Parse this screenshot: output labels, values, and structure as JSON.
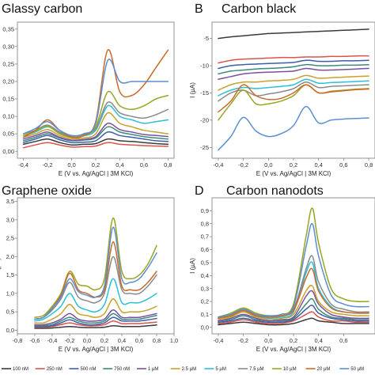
{
  "legend": [
    {
      "label": "100 nM",
      "color": "#3a3a3a"
    },
    {
      "label": "250 nM",
      "color": "#d9544d"
    },
    {
      "label": "500 nM",
      "color": "#3d5ea8"
    },
    {
      "label": "750 nM",
      "color": "#3b8a7a"
    },
    {
      "label": "1 µM",
      "color": "#7b4fa0"
    },
    {
      "label": "2.5 µM",
      "color": "#c9a12b"
    },
    {
      "label": "5 µM",
      "color": "#2bbfd9"
    },
    {
      "label": "7.5 µM",
      "color": "#8a8a8a"
    },
    {
      "label": "10 µM",
      "color": "#9aa51e"
    },
    {
      "label": "20 µM",
      "color": "#c86a2a"
    },
    {
      "label": "50 µM",
      "color": "#5b8fd0"
    }
  ],
  "chart_data": [
    {
      "id": "A",
      "letter": "",
      "title": "Glassy carbon",
      "type": "line",
      "xlabel": "E (V vs. Ag/AgCl | 3M KCl)",
      "ylabel": "",
      "xlim": [
        -0.45,
        0.85
      ],
      "ylim": [
        -0.02,
        0.37
      ],
      "xticks": [
        -0.4,
        -0.2,
        0.0,
        0.2,
        0.4,
        0.6,
        0.8
      ],
      "xtick_labels": [
        "-0,4",
        "-0,2",
        "0,0",
        "0,2",
        "0,4",
        "0,6",
        "0,8"
      ],
      "yticks": [
        0.0,
        0.05,
        0.1,
        0.15,
        0.2,
        0.25,
        0.3,
        0.35
      ],
      "ytick_labels": [
        "0,00",
        "0,05",
        "0,10",
        "0,15",
        "0,20",
        "0,25",
        "0,30",
        "0,35"
      ],
      "x": [
        -0.4,
        -0.3,
        -0.2,
        -0.1,
        0.0,
        0.1,
        0.2,
        0.3,
        0.4,
        0.5,
        0.6,
        0.7,
        0.8
      ],
      "series": [
        {
          "color": "#3a3a3a",
          "values": [
            0.02,
            0.028,
            0.035,
            0.025,
            0.018,
            0.02,
            0.022,
            0.035,
            0.03,
            0.028,
            0.025,
            0.022,
            0.02
          ]
        },
        {
          "color": "#d9544d",
          "values": [
            0.01,
            0.018,
            0.025,
            0.018,
            0.012,
            0.013,
            0.015,
            0.025,
            0.02,
            0.018,
            0.016,
            0.015,
            0.014
          ]
        },
        {
          "color": "#3d5ea8",
          "values": [
            0.025,
            0.035,
            0.045,
            0.033,
            0.025,
            0.026,
            0.03,
            0.055,
            0.045,
            0.04,
            0.035,
            0.03,
            0.028
          ]
        },
        {
          "color": "#3b8a7a",
          "values": [
            0.03,
            0.04,
            0.05,
            0.038,
            0.03,
            0.032,
            0.038,
            0.07,
            0.055,
            0.048,
            0.042,
            0.038,
            0.035
          ]
        },
        {
          "color": "#7b4fa0",
          "values": [
            0.035,
            0.045,
            0.055,
            0.04,
            0.032,
            0.034,
            0.042,
            0.08,
            0.062,
            0.055,
            0.048,
            0.045,
            0.042
          ]
        },
        {
          "color": "#c9a12b",
          "values": [
            0.04,
            0.05,
            0.062,
            0.045,
            0.036,
            0.038,
            0.05,
            0.11,
            0.08,
            0.07,
            0.06,
            0.055,
            0.05
          ]
        },
        {
          "color": "#2bbfd9",
          "values": [
            0.045,
            0.055,
            0.07,
            0.052,
            0.04,
            0.044,
            0.06,
            0.13,
            0.1,
            0.09,
            0.08,
            0.085,
            0.09
          ]
        },
        {
          "color": "#8a8a8a",
          "values": [
            0.05,
            0.06,
            0.075,
            0.055,
            0.043,
            0.048,
            0.065,
            0.14,
            0.11,
            0.1,
            0.095,
            0.105,
            0.12
          ]
        },
        {
          "color": "#9aa51e",
          "values": [
            0.045,
            0.058,
            0.072,
            0.05,
            0.04,
            0.045,
            0.07,
            0.17,
            0.13,
            0.12,
            0.13,
            0.15,
            0.16
          ]
        },
        {
          "color": "#c86a2a",
          "values": [
            0.04,
            0.06,
            0.09,
            0.06,
            0.04,
            0.045,
            0.085,
            0.29,
            0.17,
            0.16,
            0.19,
            0.24,
            0.29
          ]
        },
        {
          "color": "#5b8fd0",
          "values": [
            0.05,
            0.065,
            0.085,
            0.06,
            0.045,
            0.05,
            0.08,
            0.26,
            0.2,
            0.2,
            0.2,
            0.2,
            0.2
          ]
        }
      ]
    },
    {
      "id": "B",
      "letter": "B",
      "title": "Carbon black",
      "type": "line",
      "xlabel": "E (V vs. Ag/AgCl | 3M KCl)",
      "ylabel": "I (µA)",
      "xlim": [
        -0.45,
        0.85
      ],
      "ylim": [
        -27,
        -2
      ],
      "xticks": [
        -0.4,
        -0.2,
        0.0,
        0.2,
        0.4,
        0.6,
        0.8
      ],
      "xtick_labels": [
        "-0,4",
        "-0,2",
        "0,0",
        "0,2",
        "0,4",
        "0,6",
        "0,8"
      ],
      "yticks": [
        -25,
        -20,
        -15,
        -10,
        -5
      ],
      "ytick_labels": [
        "-25",
        "-20",
        "-15",
        "-10",
        "-5"
      ],
      "x": [
        -0.4,
        -0.3,
        -0.2,
        -0.1,
        0.0,
        0.1,
        0.2,
        0.3,
        0.4,
        0.5,
        0.6,
        0.7,
        0.8
      ],
      "series": [
        {
          "color": "#3a3a3a",
          "values": [
            -5.0,
            -4.7,
            -4.5,
            -4.3,
            -4.1,
            -4.0,
            -3.9,
            -3.8,
            -3.7,
            -3.6,
            -3.5,
            -3.4,
            -3.3
          ]
        },
        {
          "color": "#d9544d",
          "values": [
            -9.5,
            -9.0,
            -8.8,
            -8.7,
            -8.6,
            -8.5,
            -8.5,
            -8.4,
            -8.4,
            -8.3,
            -8.3,
            -8.2,
            -8.2
          ]
        },
        {
          "color": "#3d5ea8",
          "values": [
            -10.5,
            -10.0,
            -9.8,
            -9.7,
            -9.6,
            -9.5,
            -9.4,
            -9.0,
            -9.2,
            -9.2,
            -9.1,
            -9.1,
            -9.0
          ]
        },
        {
          "color": "#3b8a7a",
          "values": [
            -11.5,
            -11.0,
            -10.8,
            -10.6,
            -10.5,
            -10.4,
            -10.2,
            -9.8,
            -10.0,
            -10.0,
            -9.9,
            -9.9,
            -9.8
          ]
        },
        {
          "color": "#7b4fa0",
          "values": [
            -12.5,
            -12.0,
            -11.5,
            -11.3,
            -11.2,
            -11.1,
            -11.0,
            -10.5,
            -10.8,
            -10.8,
            -10.7,
            -10.6,
            -10.5
          ]
        },
        {
          "color": "#c9a12b",
          "values": [
            -14.5,
            -13.5,
            -13.0,
            -13.0,
            -12.8,
            -12.7,
            -12.5,
            -11.8,
            -12.3,
            -12.2,
            -12.1,
            -12.0,
            -11.9
          ]
        },
        {
          "color": "#2bbfd9",
          "values": [
            -15.5,
            -14.5,
            -14.0,
            -14.2,
            -14.0,
            -13.8,
            -13.5,
            -12.5,
            -13.2,
            -13.1,
            -13.0,
            -12.9,
            -12.8
          ]
        },
        {
          "color": "#8a8a8a",
          "values": [
            -16.5,
            -15.0,
            -14.5,
            -15.5,
            -15.2,
            -14.8,
            -14.2,
            -13.0,
            -14.0,
            -13.8,
            -13.7,
            -13.6,
            -13.5
          ]
        },
        {
          "color": "#9aa51e",
          "values": [
            -20.0,
            -17.0,
            -14.5,
            -17.0,
            -17.0,
            -16.5,
            -15.5,
            -13.5,
            -15.0,
            -14.7,
            -14.5,
            -14.3,
            -14.2
          ]
        },
        {
          "color": "#c86a2a",
          "values": [
            -18.5,
            -16.5,
            -13.5,
            -15.5,
            -16.2,
            -16.0,
            -15.0,
            -13.5,
            -15.0,
            -14.8,
            -14.6,
            -14.4,
            -14.3
          ]
        },
        {
          "color": "#5b8fd0",
          "values": [
            -25.5,
            -23.0,
            -19.5,
            -22.0,
            -23.0,
            -22.5,
            -21.0,
            -17.5,
            -20.5,
            -20.0,
            -19.8,
            -19.7,
            -19.6
          ]
        }
      ]
    },
    {
      "id": "C",
      "letter": "",
      "title": "Graphene oxide",
      "type": "line",
      "xlabel": "E (V vs. Ag/AgCl | 3M KCl)",
      "ylabel": "I (µA)",
      "xlim": [
        -0.8,
        1.0
      ],
      "ylim": [
        -0.1,
        3.6
      ],
      "xticks": [
        -0.8,
        -0.6,
        -0.4,
        -0.2,
        0.0,
        0.2,
        0.4,
        0.6,
        0.8,
        1.0
      ],
      "xtick_labels": [
        "-0,8",
        "-0,6",
        "-0,4",
        "-0,2",
        "0,0",
        "0,2",
        "0,4",
        "0,6",
        "0,8",
        "1,0"
      ],
      "yticks": [
        0.0,
        0.5,
        1.0,
        1.5,
        2.0,
        2.5,
        3.0,
        3.5
      ],
      "ytick_labels": [
        "0,0",
        "0,5",
        "1,0",
        "1,5",
        "2,0",
        "2,5",
        "3,0",
        "3,5"
      ],
      "x": [
        -0.6,
        -0.5,
        -0.4,
        -0.3,
        -0.2,
        -0.1,
        0.0,
        0.1,
        0.2,
        0.3,
        0.4,
        0.5,
        0.6,
        0.7,
        0.8
      ],
      "series": [
        {
          "color": "#3a3a3a",
          "values": [
            0.05,
            0.05,
            0.06,
            0.08,
            0.1,
            0.08,
            0.07,
            0.07,
            0.08,
            0.12,
            0.1,
            0.1,
            0.1,
            0.12,
            0.14
          ]
        },
        {
          "color": "#d9544d",
          "values": [
            0.08,
            0.08,
            0.1,
            0.15,
            0.2,
            0.15,
            0.12,
            0.12,
            0.15,
            0.25,
            0.18,
            0.18,
            0.18,
            0.2,
            0.22
          ]
        },
        {
          "color": "#3d5ea8",
          "values": [
            0.1,
            0.1,
            0.12,
            0.2,
            0.28,
            0.2,
            0.15,
            0.15,
            0.2,
            0.35,
            0.25,
            0.25,
            0.25,
            0.28,
            0.32
          ]
        },
        {
          "color": "#3b8a7a",
          "values": [
            0.12,
            0.12,
            0.15,
            0.25,
            0.35,
            0.25,
            0.2,
            0.2,
            0.25,
            0.45,
            0.3,
            0.3,
            0.3,
            0.35,
            0.4
          ]
        },
        {
          "color": "#7b4fa0",
          "values": [
            0.15,
            0.15,
            0.2,
            0.3,
            0.45,
            0.3,
            0.25,
            0.25,
            0.3,
            0.55,
            0.35,
            0.35,
            0.35,
            0.4,
            0.45
          ]
        },
        {
          "color": "#c9a12b",
          "values": [
            0.2,
            0.2,
            0.3,
            0.45,
            0.7,
            0.45,
            0.4,
            0.35,
            0.45,
            0.85,
            0.5,
            0.5,
            0.5,
            0.55,
            0.65
          ]
        },
        {
          "color": "#2bbfd9",
          "values": [
            0.25,
            0.3,
            0.45,
            0.65,
            1.0,
            0.65,
            0.55,
            0.5,
            0.7,
            1.4,
            0.75,
            0.75,
            0.75,
            0.85,
            1.0
          ]
        },
        {
          "color": "#8a8a8a",
          "values": [
            0.3,
            0.35,
            0.55,
            0.85,
            1.3,
            0.9,
            0.8,
            0.75,
            1.0,
            2.0,
            1.1,
            1.0,
            1.0,
            1.2,
            1.5
          ]
        },
        {
          "color": "#9aa51e",
          "values": [
            0.35,
            0.4,
            0.65,
            1.0,
            1.6,
            1.25,
            1.2,
            1.1,
            1.4,
            3.05,
            1.6,
            1.4,
            1.5,
            1.8,
            2.3
          ]
        },
        {
          "color": "#c86a2a",
          "values": [
            0.3,
            0.35,
            0.6,
            0.95,
            1.55,
            1.1,
            1.0,
            0.9,
            1.1,
            2.4,
            1.2,
            1.1,
            1.1,
            1.3,
            1.6
          ]
        },
        {
          "color": "#5b8fd0",
          "values": [
            0.3,
            0.35,
            0.6,
            0.9,
            1.4,
            1.05,
            0.95,
            0.9,
            1.2,
            2.8,
            1.4,
            1.3,
            1.4,
            1.7,
            2.1
          ]
        }
      ]
    },
    {
      "id": "D",
      "letter": "D",
      "title": "Carbon nanodots",
      "type": "line",
      "xlabel": "E (V vs. Ag/AgCl | 3M KCl)",
      "ylabel": "I (µA)",
      "xlim": [
        -0.45,
        0.85
      ],
      "ylim": [
        -0.05,
        1.0
      ],
      "xticks": [
        -0.4,
        -0.2,
        0.0,
        0.2,
        0.4,
        0.6
      ],
      "xtick_labels": [
        "-0,4",
        "-0,2",
        "0,0",
        "0,2",
        "0,4",
        "0,6"
      ],
      "yticks": [
        0.0,
        0.1,
        0.2,
        0.3,
        0.4,
        0.5,
        0.6,
        0.7,
        0.8,
        0.9
      ],
      "ytick_labels": [
        "0,0",
        "0,1",
        "0,2",
        "0,3",
        "0,4",
        "0,5",
        "0,6",
        "0,7",
        "0,8",
        "0,9"
      ],
      "x": [
        -0.4,
        -0.3,
        -0.2,
        -0.1,
        0.0,
        0.1,
        0.2,
        0.3,
        0.35,
        0.4,
        0.5,
        0.6,
        0.7,
        0.8
      ],
      "series": [
        {
          "color": "#3a3a3a",
          "values": [
            0.02,
            0.03,
            0.04,
            0.03,
            0.02,
            0.02,
            0.03,
            0.06,
            0.07,
            0.05,
            0.04,
            0.03,
            0.03,
            0.03
          ]
        },
        {
          "color": "#d9544d",
          "values": [
            0.03,
            0.04,
            0.06,
            0.04,
            0.03,
            0.03,
            0.05,
            0.1,
            0.12,
            0.08,
            0.05,
            0.05,
            0.04,
            0.04
          ]
        },
        {
          "color": "#3d5ea8",
          "values": [
            0.04,
            0.05,
            0.07,
            0.05,
            0.04,
            0.04,
            0.06,
            0.14,
            0.17,
            0.11,
            0.07,
            0.06,
            0.05,
            0.05
          ]
        },
        {
          "color": "#3b8a7a",
          "values": [
            0.05,
            0.06,
            0.09,
            0.06,
            0.05,
            0.05,
            0.07,
            0.18,
            0.22,
            0.14,
            0.08,
            0.07,
            0.06,
            0.06
          ]
        },
        {
          "color": "#7b4fa0",
          "values": [
            0.05,
            0.07,
            0.1,
            0.07,
            0.05,
            0.06,
            0.08,
            0.24,
            0.28,
            0.18,
            0.1,
            0.08,
            0.07,
            0.07
          ]
        },
        {
          "color": "#c9a12b",
          "values": [
            0.06,
            0.08,
            0.12,
            0.08,
            0.06,
            0.07,
            0.1,
            0.28,
            0.32,
            0.2,
            0.12,
            0.1,
            0.09,
            0.09
          ]
        },
        {
          "color": "#2bbfd9",
          "values": [
            0.07,
            0.09,
            0.13,
            0.09,
            0.07,
            0.08,
            0.12,
            0.42,
            0.5,
            0.3,
            0.16,
            0.12,
            0.11,
            0.11
          ]
        },
        {
          "color": "#8a8a8a",
          "values": [
            0.07,
            0.1,
            0.14,
            0.1,
            0.08,
            0.09,
            0.14,
            0.45,
            0.55,
            0.35,
            0.18,
            0.14,
            0.12,
            0.12
          ]
        },
        {
          "color": "#9aa51e",
          "values": [
            0.08,
            0.11,
            0.15,
            0.11,
            0.09,
            0.1,
            0.18,
            0.7,
            0.92,
            0.65,
            0.3,
            0.22,
            0.2,
            0.2
          ]
        },
        {
          "color": "#c86a2a",
          "values": [
            0.07,
            0.09,
            0.13,
            0.09,
            0.08,
            0.09,
            0.13,
            0.38,
            0.45,
            0.28,
            0.15,
            0.12,
            0.11,
            0.11
          ]
        },
        {
          "color": "#5b8fd0",
          "values": [
            0.08,
            0.1,
            0.14,
            0.1,
            0.09,
            0.1,
            0.16,
            0.62,
            0.8,
            0.55,
            0.25,
            0.18,
            0.16,
            0.16
          ]
        }
      ]
    }
  ]
}
